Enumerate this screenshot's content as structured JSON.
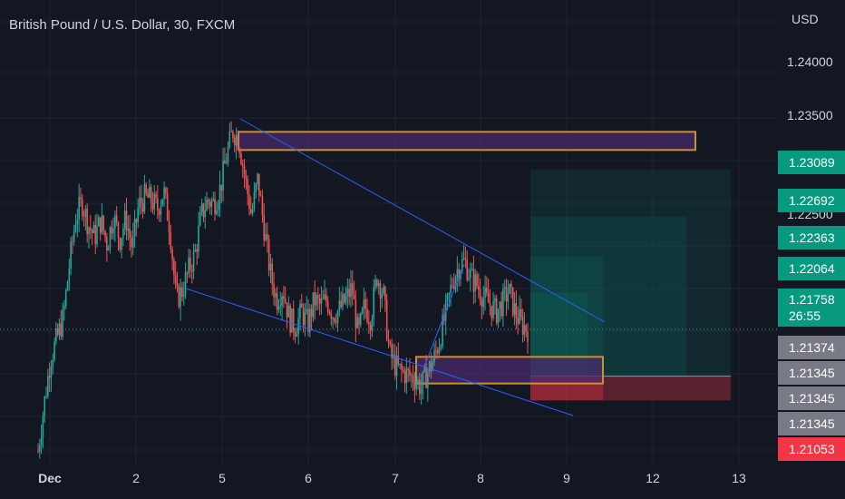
{
  "header": {
    "title": "British Pound / U.S. Dollar, 30, FXCM",
    "currency": "USD"
  },
  "colors": {
    "background": "#131722",
    "up": "#26a69a",
    "down": "#ef5350",
    "trendline": "#2962ff",
    "zone_border": "#c8902e",
    "zone_fill": "#4a2a6b",
    "profit": "#089981",
    "loss": "#f23645"
  },
  "chart_data": {
    "type": "candlestick",
    "symbol": "GBPUSD",
    "timeframe": "30",
    "y_ticks": [
      "1.24000",
      "1.23500",
      "1.22500"
    ],
    "ylim": [
      1.2064,
      1.2448
    ],
    "x_ticks": [
      "Dec",
      "2",
      "5",
      "6",
      "7",
      "8",
      "9",
      "12",
      "13"
    ],
    "close_path": [
      [
        "Dec",
        1.2075
      ],
      [
        "Dec",
        1.2115
      ],
      [
        "Dec",
        1.2152
      ],
      [
        "Dec",
        1.2168
      ],
      [
        "2",
        1.2185
      ],
      [
        "2",
        1.223
      ],
      [
        "2",
        1.2268
      ],
      [
        "2",
        1.2281
      ],
      [
        "2",
        1.2262
      ],
      [
        "2",
        1.2252
      ],
      [
        "2",
        1.2266
      ],
      [
        "2",
        1.2246
      ],
      [
        "2",
        1.227
      ],
      [
        "5",
        1.225
      ],
      [
        "5",
        1.2268
      ],
      [
        "5",
        1.2242
      ],
      [
        "5",
        1.2278
      ],
      [
        "5",
        1.2285
      ],
      [
        "5",
        1.2283
      ],
      [
        "5",
        1.2275
      ],
      [
        "5",
        1.229
      ],
      [
        "5",
        1.226
      ],
      [
        "5",
        1.22
      ],
      [
        "5",
        1.2208
      ],
      [
        "5",
        1.2225
      ],
      [
        "5",
        1.2238
      ],
      [
        "5",
        1.227
      ],
      [
        "5",
        1.2282
      ],
      [
        "5",
        1.228
      ],
      [
        "5",
        1.2292
      ],
      [
        "5",
        1.2318
      ],
      [
        "5",
        1.234
      ],
      [
        "5",
        1.2332
      ],
      [
        "6",
        1.23
      ],
      [
        "6",
        1.227
      ],
      [
        "6",
        1.23
      ],
      [
        "6",
        1.226
      ],
      [
        "6",
        1.2222
      ],
      [
        "6",
        1.22
      ],
      [
        "6",
        1.221
      ],
      [
        "6",
        1.2185
      ],
      [
        "6",
        1.2178
      ],
      [
        "6",
        1.219
      ],
      [
        "6",
        1.218
      ],
      [
        "6",
        1.22
      ],
      [
        "6",
        1.2195
      ],
      [
        "6",
        1.22
      ],
      [
        "6",
        1.2188
      ],
      [
        "6",
        1.2192
      ],
      [
        "7",
        1.22
      ],
      [
        "7",
        1.221
      ],
      [
        "7",
        1.217
      ],
      [
        "7",
        1.2195
      ],
      [
        "7",
        1.2185
      ],
      [
        "7",
        1.222
      ],
      [
        "7",
        1.2205
      ],
      [
        "7",
        1.2155
      ],
      [
        "7",
        1.2145
      ],
      [
        "7",
        1.214
      ],
      [
        "7",
        1.2138
      ],
      [
        "7",
        1.2135
      ],
      [
        "7",
        1.2128
      ],
      [
        "7",
        1.214
      ],
      [
        "7",
        1.215
      ],
      [
        "7",
        1.2168
      ],
      [
        "7",
        1.219
      ],
      [
        "8",
        1.2215
      ],
      [
        "8",
        1.2228
      ],
      [
        "8",
        1.2232
      ],
      [
        "8",
        1.2218
      ],
      [
        "8",
        1.2212
      ],
      [
        "8",
        1.2202
      ],
      [
        "8",
        1.2196
      ],
      [
        "8",
        1.219
      ],
      [
        "8",
        1.2198
      ],
      [
        "8",
        1.2208
      ],
      [
        "8",
        1.219
      ],
      [
        "8",
        1.218
      ],
      [
        "8",
        1.2176
      ]
    ],
    "current_price": {
      "value": "1.21758",
      "countdown": "26:55"
    },
    "price_labels": [
      {
        "value": "1.23089",
        "color": "#089981"
      },
      {
        "value": "1.22692",
        "color": "#089981"
      },
      {
        "value": "1.22363",
        "color": "#089981"
      },
      {
        "value": "1.22064",
        "color": "#089981"
      },
      {
        "value": "1.21374",
        "color": "#787b86"
      },
      {
        "value": "1.21345",
        "color": "#787b86"
      },
      {
        "value": "1.21345",
        "color": "#787b86"
      },
      {
        "value": "1.21345",
        "color": "#787b86"
      },
      {
        "value": "1.21053",
        "color": "#f23645"
      }
    ],
    "zones": [
      {
        "name": "supply",
        "top": 1.2339,
        "bottom": 1.2324
      },
      {
        "name": "demand",
        "top": 1.2153,
        "bottom": 1.2131
      }
    ],
    "position": {
      "entry": 1.2137,
      "stop": 1.2117,
      "targets": [
        1.2308,
        1.2269,
        1.2236,
        1.2206
      ]
    },
    "grid": true
  }
}
